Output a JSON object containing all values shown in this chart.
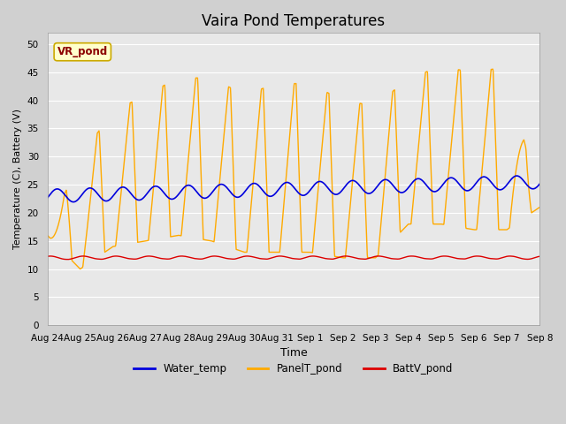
{
  "title": "Vaira Pond Temperatures",
  "xlabel": "Time",
  "ylabel": "Temperature (C), Battery (V)",
  "ylim": [
    0,
    52
  ],
  "yticks": [
    0,
    5,
    10,
    15,
    20,
    25,
    30,
    35,
    40,
    45,
    50
  ],
  "x_labels": [
    "Aug 24",
    "Aug 25",
    "Aug 26",
    "Aug 27",
    "Aug 28",
    "Aug 29",
    "Aug 30",
    "Aug 31",
    "Sep 1",
    "Sep 2",
    "Sep 3",
    "Sep 4",
    "Sep 5",
    "Sep 6",
    "Sep 7",
    "Sep 8"
  ],
  "water_color": "#0000dd",
  "panel_color": "#ffaa00",
  "batt_color": "#dd0000",
  "fig_bg_color": "#d0d0d0",
  "ax_bg_color": "#e8e8e8",
  "grid_color": "#ffffff",
  "legend_label_water": "Water_temp",
  "legend_label_panel": "PanelT_pond",
  "legend_label_batt": "BattV_pond",
  "annotation_text": "VR_pond",
  "annotation_bg": "#ffffcc",
  "annotation_border": "#ccaa00"
}
